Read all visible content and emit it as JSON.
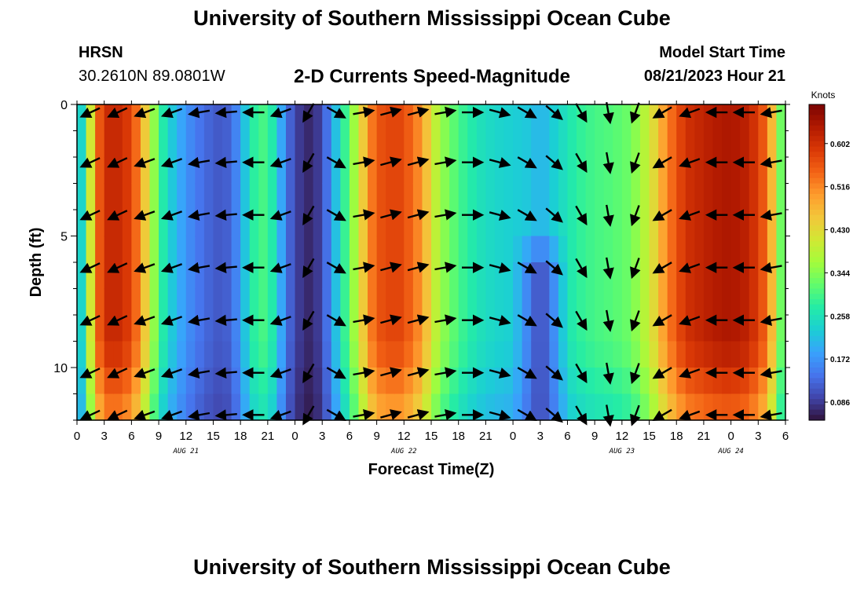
{
  "header": {
    "title": "University of Southern Mississippi Ocean Cube",
    "station_name": "HRSN",
    "station_coords": "30.2610N  89.0801W",
    "model_start_label": "Model Start Time",
    "model_start_value": "08/21/2023 Hour 21"
  },
  "footer": {
    "title": "University of Southern Mississippi Ocean Cube"
  },
  "chart_data": {
    "type": "heatmap",
    "title": "2-D Currents Speed-Magnitude",
    "xlabel": "Forecast Time(Z)",
    "ylabel": "Depth (ft)",
    "x_range_hours": [
      0,
      78
    ],
    "y_range_ft": [
      0,
      12
    ],
    "x_tick_labels": [
      "0",
      "3",
      "6",
      "9",
      "12",
      "15",
      "18",
      "21",
      "0",
      "3",
      "6",
      "9",
      "12",
      "15",
      "18",
      "21",
      "0",
      "3",
      "6",
      "9",
      "12",
      "15",
      "18",
      "21",
      "0",
      "3",
      "6"
    ],
    "y_ticks": [
      0,
      5,
      10
    ],
    "date_labels": [
      {
        "label": "AUG 21",
        "hour": 12
      },
      {
        "label": "AUG 22",
        "hour": 36
      },
      {
        "label": "AUG 23",
        "hour": 60
      },
      {
        "label": "AUG 24",
        "hour": 72
      }
    ],
    "colorbar": {
      "unit": "Knots",
      "ticks": [
        "0.602",
        "0.516",
        "0.430",
        "0.344",
        "0.258",
        "0.172",
        "0.086"
      ],
      "min": 0.05,
      "max": 0.68,
      "colors": [
        "#30123b",
        "#4145ab",
        "#4675ed",
        "#39a2fc",
        "#1bcfd4",
        "#24eca6",
        "#61fc6c",
        "#a4fc3b",
        "#d1e834",
        "#f3c63a",
        "#fe9b2d",
        "#f36315",
        "#d93806",
        "#b11901",
        "#7a0402"
      ]
    },
    "speed_by_time_knots": [
      {
        "h": 0,
        "v": 0.18
      },
      {
        "h": 1,
        "v": 0.3
      },
      {
        "h": 2,
        "v": 0.52
      },
      {
        "h": 3,
        "v": 0.6
      },
      {
        "h": 4,
        "v": 0.62
      },
      {
        "h": 6,
        "v": 0.58
      },
      {
        "h": 7,
        "v": 0.5
      },
      {
        "h": 8,
        "v": 0.4
      },
      {
        "h": 9,
        "v": 0.3
      },
      {
        "h": 10,
        "v": 0.24
      },
      {
        "h": 12,
        "v": 0.17
      },
      {
        "h": 14,
        "v": 0.13
      },
      {
        "h": 16,
        "v": 0.11
      },
      {
        "h": 17,
        "v": 0.13
      },
      {
        "h": 18,
        "v": 0.18
      },
      {
        "h": 19,
        "v": 0.26
      },
      {
        "h": 20,
        "v": 0.3
      },
      {
        "h": 21,
        "v": 0.3
      },
      {
        "h": 22,
        "v": 0.24
      },
      {
        "h": 23,
        "v": 0.14
      },
      {
        "h": 24,
        "v": 0.1
      },
      {
        "h": 25,
        "v": 0.07
      },
      {
        "h": 26,
        "v": 0.07
      },
      {
        "h": 27,
        "v": 0.1
      },
      {
        "h": 28,
        "v": 0.17
      },
      {
        "h": 29,
        "v": 0.26
      },
      {
        "h": 30,
        "v": 0.32
      },
      {
        "h": 31,
        "v": 0.4
      },
      {
        "h": 32,
        "v": 0.5
      },
      {
        "h": 33,
        "v": 0.56
      },
      {
        "h": 35,
        "v": 0.58
      },
      {
        "h": 36,
        "v": 0.57
      },
      {
        "h": 38,
        "v": 0.5
      },
      {
        "h": 39,
        "v": 0.42
      },
      {
        "h": 40,
        "v": 0.36
      },
      {
        "h": 42,
        "v": 0.3
      },
      {
        "h": 44,
        "v": 0.26
      },
      {
        "h": 46,
        "v": 0.24
      },
      {
        "h": 48,
        "v": 0.23
      },
      {
        "h": 50,
        "v": 0.22
      },
      {
        "h": 51,
        "v": 0.2
      },
      {
        "h": 52,
        "v": 0.22
      },
      {
        "h": 54,
        "v": 0.26
      },
      {
        "h": 55,
        "v": 0.28
      },
      {
        "h": 57,
        "v": 0.3
      },
      {
        "h": 59,
        "v": 0.31
      },
      {
        "h": 61,
        "v": 0.33
      },
      {
        "h": 63,
        "v": 0.4
      },
      {
        "h": 65,
        "v": 0.52
      },
      {
        "h": 67,
        "v": 0.6
      },
      {
        "h": 70,
        "v": 0.63
      },
      {
        "h": 72,
        "v": 0.64
      },
      {
        "h": 74,
        "v": 0.62
      },
      {
        "h": 76,
        "v": 0.54
      },
      {
        "h": 77,
        "v": 0.4
      },
      {
        "h": 78,
        "v": 0.26
      }
    ],
    "low_speed_plume": {
      "center_hour": 51,
      "top_depth_ft": 5.5,
      "speed_knots": 0.1
    },
    "vector_depths_ft": [
      0.3,
      2.2,
      4.2,
      6.2,
      8.2,
      10.2,
      11.8
    ],
    "vector_hours": [
      0,
      3,
      6,
      9,
      12,
      15,
      18,
      21,
      24,
      27,
      30,
      33,
      36,
      39,
      42,
      45,
      48,
      51,
      54,
      57,
      60,
      63,
      66,
      69,
      72,
      75
    ],
    "vector_directions_deg": [
      205,
      205,
      200,
      200,
      190,
      185,
      180,
      200,
      240,
      330,
      10,
      15,
      15,
      10,
      0,
      345,
      330,
      320,
      300,
      280,
      250,
      210,
      200,
      180,
      180,
      190
    ],
    "grid": true
  }
}
